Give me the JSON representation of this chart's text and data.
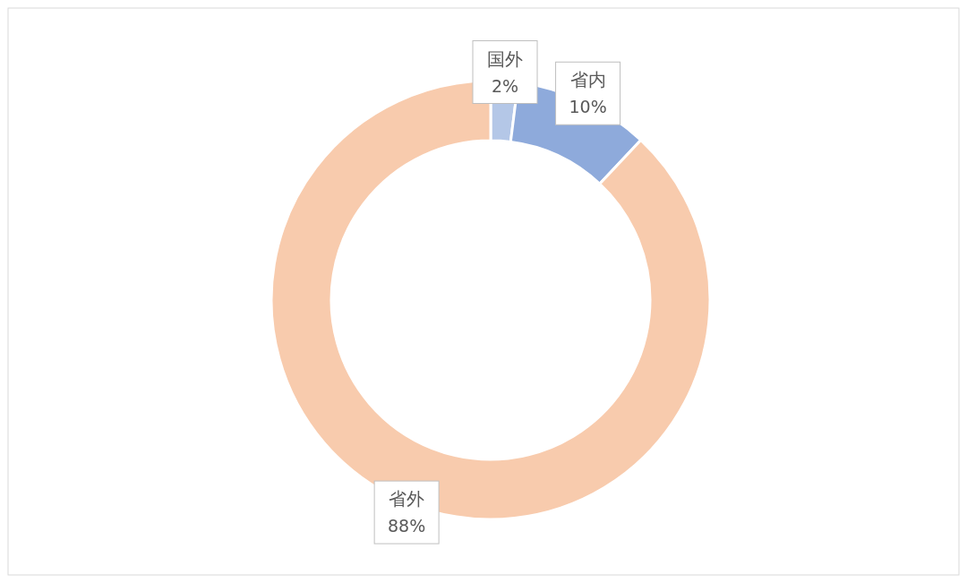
{
  "chart_data": {
    "type": "donut",
    "categories": [
      "国外",
      "省内",
      "省外"
    ],
    "values": [
      2,
      10,
      88
    ],
    "value_labels": [
      "2%",
      "10%",
      "88%"
    ],
    "colors": [
      "#b4c7e7",
      "#8eaadb",
      "#f8cbad"
    ]
  }
}
